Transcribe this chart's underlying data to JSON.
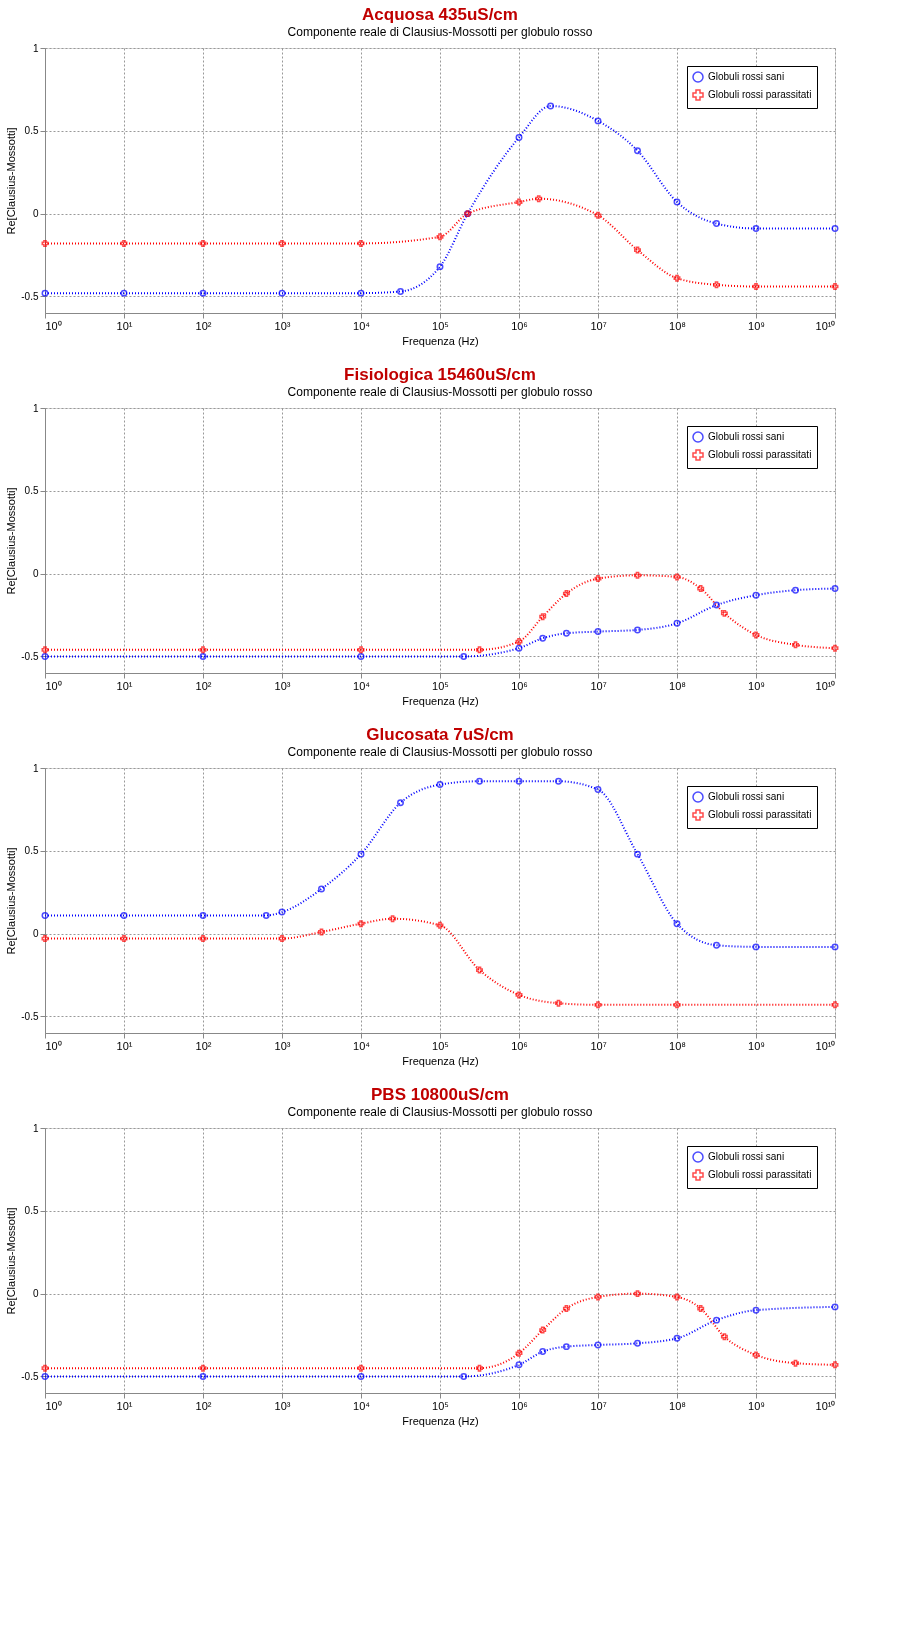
{
  "chart_data": [
    {
      "type": "line",
      "title": "Acquosa  435uS/cm",
      "subtitle": "Componente reale di Clausius-Mossotti per globulo rosso",
      "xlabel": "Frequenza (Hz)",
      "ylabel": "Re[Clausius-Mossotti]",
      "log": "x",
      "grid": true,
      "legend": "top right",
      "line_style": "dotted",
      "xlim": [
        1,
        10000000000
      ],
      "ylim": [
        -0.6,
        1
      ],
      "yticks": [
        -0.5,
        0,
        0.5,
        1
      ],
      "xticks": [
        {
          "value": 1,
          "label": "10⁰"
        },
        {
          "value": 10,
          "label": "10¹"
        },
        {
          "value": 100,
          "label": "10²"
        },
        {
          "value": 1000,
          "label": "10³"
        },
        {
          "value": 10000,
          "label": "10⁴"
        },
        {
          "value": 100000,
          "label": "10⁵"
        },
        {
          "value": 1000000,
          "label": "10⁶"
        },
        {
          "value": 10000000,
          "label": "10⁷"
        },
        {
          "value": 100000000,
          "label": "10⁸"
        },
        {
          "value": 1000000000,
          "label": "10⁹"
        },
        {
          "value": 10000000000,
          "label": "10¹⁰"
        }
      ],
      "series": [
        {
          "name": "Globuli rossi sani",
          "color": "#0000ff",
          "marker": "circle",
          "x": [
            1,
            10,
            100,
            1000,
            10000,
            31623,
            100000,
            223872,
            1000000,
            2511886,
            10000000,
            31622777,
            100000000,
            316227766,
            1000000000,
            10000000000
          ],
          "values": [
            -0.48,
            -0.48,
            -0.48,
            -0.48,
            -0.48,
            -0.47,
            -0.32,
            0,
            0.46,
            0.65,
            0.56,
            0.38,
            0.07,
            -0.06,
            -0.09,
            -0.09
          ]
        },
        {
          "name": "Globuli rossi parassitati",
          "color": "#ff0000",
          "marker": "cross",
          "x": [
            1,
            10,
            100,
            1000,
            10000,
            100000,
            223872,
            1000000,
            1778279,
            10000000,
            31622777,
            100000000,
            316227766,
            1000000000,
            10000000000
          ],
          "values": [
            -0.18,
            -0.18,
            -0.18,
            -0.18,
            -0.18,
            -0.14,
            0,
            0.07,
            0.09,
            -0.01,
            -0.22,
            -0.39,
            -0.43,
            -0.44,
            -0.44
          ]
        }
      ]
    },
    {
      "type": "line",
      "title": "Fisiologica 15460uS/cm",
      "subtitle": "Componente reale di Clausius-Mossotti per globulo rosso",
      "xlabel": "Frequenza (Hz)",
      "ylabel": "Re[Clausius-Mossotti]",
      "log": "x",
      "grid": true,
      "legend": "top right",
      "line_style": "dotted",
      "xlim": [
        1,
        10000000000
      ],
      "ylim": [
        -0.6,
        1
      ],
      "yticks": [
        -0.5,
        0,
        0.5,
        1
      ],
      "xticks": [
        {
          "value": 1,
          "label": "10⁰"
        },
        {
          "value": 10,
          "label": "10¹"
        },
        {
          "value": 100,
          "label": "10²"
        },
        {
          "value": 1000,
          "label": "10³"
        },
        {
          "value": 10000,
          "label": "10⁴"
        },
        {
          "value": 100000,
          "label": "10⁵"
        },
        {
          "value": 1000000,
          "label": "10⁶"
        },
        {
          "value": 10000000,
          "label": "10⁷"
        },
        {
          "value": 100000000,
          "label": "10⁸"
        },
        {
          "value": 1000000000,
          "label": "10⁹"
        },
        {
          "value": 10000000000,
          "label": "10¹⁰"
        }
      ],
      "series": [
        {
          "name": "Globuli rossi sani",
          "color": "#0000ff",
          "marker": "circle",
          "x": [
            1,
            100,
            10000,
            199526,
            1000000,
            1995262,
            3981072,
            10000000,
            31622777,
            100000000,
            316227766,
            1000000000,
            3162277660,
            10000000000
          ],
          "values": [
            -0.5,
            -0.5,
            -0.5,
            -0.5,
            -0.45,
            -0.39,
            -0.36,
            -0.35,
            -0.34,
            -0.3,
            -0.19,
            -0.13,
            -0.1,
            -0.09
          ]
        },
        {
          "name": "Globuli rossi parassitati",
          "color": "#ff0000",
          "marker": "cross",
          "x": [
            1,
            100,
            10000,
            316228,
            1000000,
            1995262,
            3981072,
            10000000,
            31622777,
            100000000,
            199526231,
            398107171,
            1000000000,
            3162277660,
            10000000000
          ],
          "values": [
            -0.46,
            -0.46,
            -0.46,
            -0.46,
            -0.41,
            -0.26,
            -0.12,
            -0.03,
            -0.01,
            -0.02,
            -0.09,
            -0.24,
            -0.37,
            -0.43,
            -0.45
          ]
        }
      ]
    },
    {
      "type": "line",
      "title": "Glucosata 7uS/cm",
      "subtitle": "Componente reale di Clausius-Mossotti per globulo rosso",
      "xlabel": "Frequenza (Hz)",
      "ylabel": "Re[Clausius-Mossotti]",
      "log": "x",
      "grid": true,
      "legend": "top right",
      "line_style": "dotted",
      "xlim": [
        1,
        10000000000
      ],
      "ylim": [
        -0.6,
        1
      ],
      "yticks": [
        -0.5,
        0,
        0.5,
        1
      ],
      "xticks": [
        {
          "value": 1,
          "label": "10⁰"
        },
        {
          "value": 10,
          "label": "10¹"
        },
        {
          "value": 100,
          "label": "10²"
        },
        {
          "value": 1000,
          "label": "10³"
        },
        {
          "value": 10000,
          "label": "10⁴"
        },
        {
          "value": 100000,
          "label": "10⁵"
        },
        {
          "value": 1000000,
          "label": "10⁶"
        },
        {
          "value": 10000000,
          "label": "10⁷"
        },
        {
          "value": 100000000,
          "label": "10⁸"
        },
        {
          "value": 1000000000,
          "label": "10⁹"
        },
        {
          "value": 10000000000,
          "label": "10¹⁰"
        }
      ],
      "series": [
        {
          "name": "Globuli rossi sani",
          "color": "#0000ff",
          "marker": "circle",
          "x": [
            1,
            10,
            100,
            631,
            1000,
            3162,
            10000,
            31623,
            100000,
            316228,
            1000000,
            3162278,
            10000000,
            31622777,
            100000000,
            316227766,
            1000000000,
            10000000000
          ],
          "values": [
            0.11,
            0.11,
            0.11,
            0.11,
            0.13,
            0.27,
            0.48,
            0.79,
            0.9,
            0.92,
            0.92,
            0.92,
            0.87,
            0.48,
            0.06,
            -0.07,
            -0.08,
            -0.08
          ]
        },
        {
          "name": "Globuli rossi parassitati",
          "color": "#ff0000",
          "marker": "cross",
          "x": [
            1,
            10,
            100,
            1000,
            3162,
            10000,
            25119,
            100000,
            316228,
            1000000,
            3162278,
            10000000,
            100000000,
            10000000000
          ],
          "values": [
            -0.03,
            -0.03,
            -0.03,
            -0.03,
            0.01,
            0.06,
            0.09,
            0.05,
            -0.22,
            -0.37,
            -0.42,
            -0.43,
            -0.43,
            -0.43
          ]
        }
      ]
    },
    {
      "type": "line",
      "title": "PBS 10800uS/cm",
      "subtitle": "Componente reale di Clausius-Mossotti per globulo rosso",
      "xlabel": "Frequenza (Hz)",
      "ylabel": "Re[Clausius-Mossotti]",
      "log": "x",
      "grid": true,
      "legend": "top right",
      "line_style": "dotted",
      "xlim": [
        1,
        10000000000
      ],
      "ylim": [
        -0.6,
        1
      ],
      "yticks": [
        -0.5,
        0,
        0.5,
        1
      ],
      "xticks": [
        {
          "value": 1,
          "label": "10⁰"
        },
        {
          "value": 10,
          "label": "10¹"
        },
        {
          "value": 100,
          "label": "10²"
        },
        {
          "value": 1000,
          "label": "10³"
        },
        {
          "value": 10000,
          "label": "10⁴"
        },
        {
          "value": 100000,
          "label": "10⁵"
        },
        {
          "value": 1000000,
          "label": "10⁶"
        },
        {
          "value": 10000000,
          "label": "10⁷"
        },
        {
          "value": 100000000,
          "label": "10⁸"
        },
        {
          "value": 1000000000,
          "label": "10⁹"
        },
        {
          "value": 10000000000,
          "label": "10¹⁰"
        }
      ],
      "series": [
        {
          "name": "Globuli rossi sani",
          "color": "#0000ff",
          "marker": "circle",
          "x": [
            1,
            100,
            10000,
            199526,
            1000000,
            1995262,
            3981072,
            10000000,
            31622777,
            100000000,
            316227766,
            1000000000,
            10000000000
          ],
          "values": [
            -0.5,
            -0.5,
            -0.5,
            -0.5,
            -0.43,
            -0.35,
            -0.32,
            -0.31,
            -0.3,
            -0.27,
            -0.16,
            -0.1,
            -0.08
          ]
        },
        {
          "name": "Globuli rossi parassitati",
          "color": "#ff0000",
          "marker": "cross",
          "x": [
            1,
            100,
            10000,
            316228,
            1000000,
            1995262,
            3981072,
            10000000,
            31622777,
            100000000,
            199526231,
            398107171,
            1000000000,
            3162277660,
            10000000000
          ],
          "values": [
            -0.45,
            -0.45,
            -0.45,
            -0.45,
            -0.36,
            -0.22,
            -0.09,
            -0.02,
            0,
            -0.02,
            -0.09,
            -0.26,
            -0.37,
            -0.42,
            -0.43
          ]
        }
      ]
    }
  ]
}
